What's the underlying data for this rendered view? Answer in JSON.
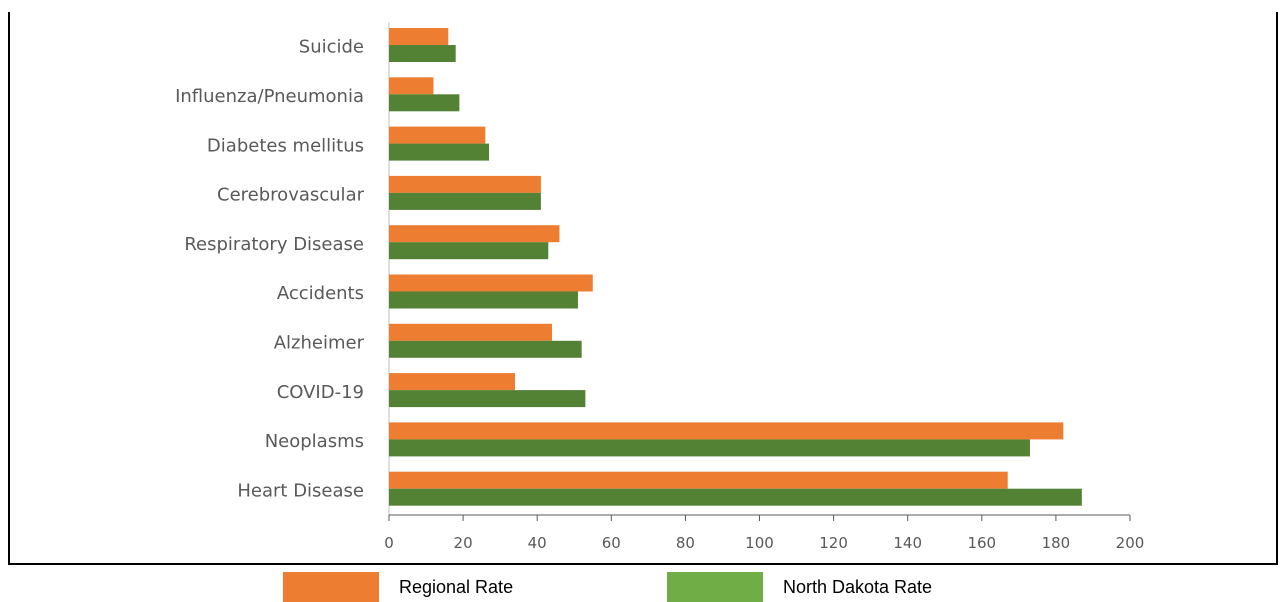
{
  "chart_data": {
    "type": "bar",
    "orientation": "horizontal",
    "categories": [
      "Suicide",
      "Influenza/Pneumonia",
      "Diabetes mellitus",
      "Cerebrovascular",
      "Respiratory Disease",
      "Accidents",
      "Alzheimer",
      "COVID-19",
      "Neoplasms",
      "Heart Disease"
    ],
    "series": [
      {
        "name": "Regional Rate",
        "color": "#ED7D31",
        "values": [
          16,
          12,
          26,
          41,
          46,
          55,
          44,
          34,
          182,
          167
        ]
      },
      {
        "name": "North Dakota Rate",
        "color": "#548235",
        "values": [
          18,
          19,
          27,
          41,
          43,
          51,
          52,
          53,
          173,
          187
        ]
      }
    ],
    "xlim": [
      0,
      200
    ],
    "xticks": [
      0,
      20,
      40,
      60,
      80,
      100,
      120,
      140,
      160,
      180,
      200
    ],
    "grid": false,
    "legend_position": "bottom"
  },
  "legend": {
    "items": [
      {
        "label": "Regional Rate",
        "color": "#ED7D31"
      },
      {
        "label": "North Dakota Rate",
        "color": "#70AD47"
      }
    ]
  }
}
